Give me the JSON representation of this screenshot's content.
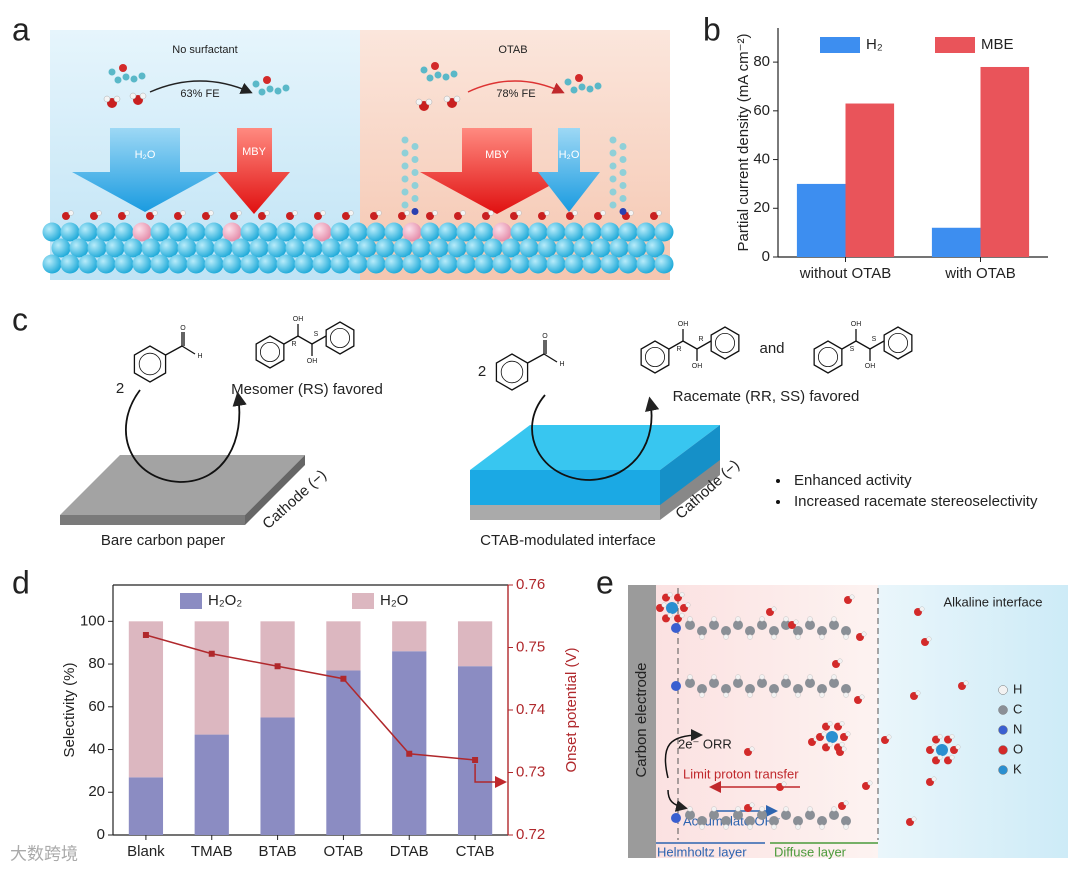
{
  "panel_labels": [
    "a",
    "b",
    "c",
    "d",
    "e"
  ],
  "panel_a": {
    "left_title": "No surfactant",
    "left_fe": "63% FE",
    "left_arrows": [
      "H₂O",
      "MBY"
    ],
    "right_title": "OTAB",
    "right_fe": "78% FE",
    "right_arrows": [
      "MBY",
      "H₂O"
    ]
  },
  "chart_data": [
    {
      "type": "bar",
      "y_label": "Partial current density (mA cm⁻²)",
      "categories": [
        "without OTAB",
        "with OTAB"
      ],
      "series": [
        {
          "name": "H₂",
          "color": "#3d8ef0",
          "values": [
            30,
            12
          ]
        },
        {
          "name": "MBE",
          "color": "#e9545a",
          "values": [
            63,
            78
          ]
        }
      ],
      "ylim": [
        0,
        94
      ],
      "yticks": [
        0,
        20,
        40,
        60,
        80
      ],
      "legend": "top"
    },
    {
      "type": "bar",
      "stacked": true,
      "y_label": "Selectivity (%)",
      "y2_label": "Onset potential (V)",
      "categories": [
        "Blank",
        "TMAB",
        "BTAB",
        "OTAB",
        "DTAB",
        "CTAB"
      ],
      "series": [
        {
          "name": "H₂O₂",
          "color": "#8b8cc2",
          "values": [
            27,
            47,
            55,
            77,
            86,
            79
          ]
        },
        {
          "name": "H₂O",
          "color": "#dcb7c0",
          "values": [
            73,
            53,
            45,
            23,
            14,
            21
          ]
        }
      ],
      "line": {
        "color": "#b0282c",
        "axis": "y2",
        "values": [
          0.752,
          0.749,
          0.747,
          0.745,
          0.733,
          0.732
        ]
      },
      "ylim": [
        0,
        117
      ],
      "yticks": [
        0,
        20,
        40,
        60,
        80,
        100
      ],
      "y2lim": [
        0.72,
        0.76
      ],
      "y2ticks": [
        0.72,
        0.73,
        0.74,
        0.75,
        0.76
      ],
      "legend": "top"
    }
  ],
  "panel_c": {
    "left_coeff": "2",
    "left_aldehyde": [
      "O",
      "H"
    ],
    "mesomer": [
      "OH",
      "R",
      "S",
      "OH"
    ],
    "left_product": "Mesomer (RS) favored",
    "left_substrate": "Bare carbon paper",
    "left_cathode": "Cathode (−)",
    "right_coeff": "2",
    "right_aldehyde": [
      "O",
      "H"
    ],
    "racemate_1": [
      "OH",
      "R",
      "R",
      "OH"
    ],
    "and": "and",
    "racemate_2": [
      "OH",
      "S",
      "S",
      "OH"
    ],
    "right_product": "Racemate (RR, SS) favored",
    "right_substrate": "CTAB-modulated interface",
    "right_cathode": "Cathode (−)",
    "bullets": [
      "Enhanced activity",
      "Increased racemate stereoselectivity"
    ]
  },
  "panel_e": {
    "electrode": "Carbon electrode",
    "bulk": "Alkaline interface",
    "legend": [
      {
        "label": "H",
        "color": "#f2f2f2"
      },
      {
        "label": "C",
        "color": "#8a8f96"
      },
      {
        "label": "N",
        "color": "#3a5fd0"
      },
      {
        "label": "O",
        "color": "#d32a2a"
      },
      {
        "label": "K",
        "color": "#2a8fd0"
      }
    ],
    "orr": "2e⁻ ORR",
    "proton": "Limit proton transfer",
    "oh": "Accumulate OH⁻",
    "helmholtz": "Helmholtz layer",
    "diffuse": "Diffuse layer"
  },
  "watermark": "大数跨境"
}
